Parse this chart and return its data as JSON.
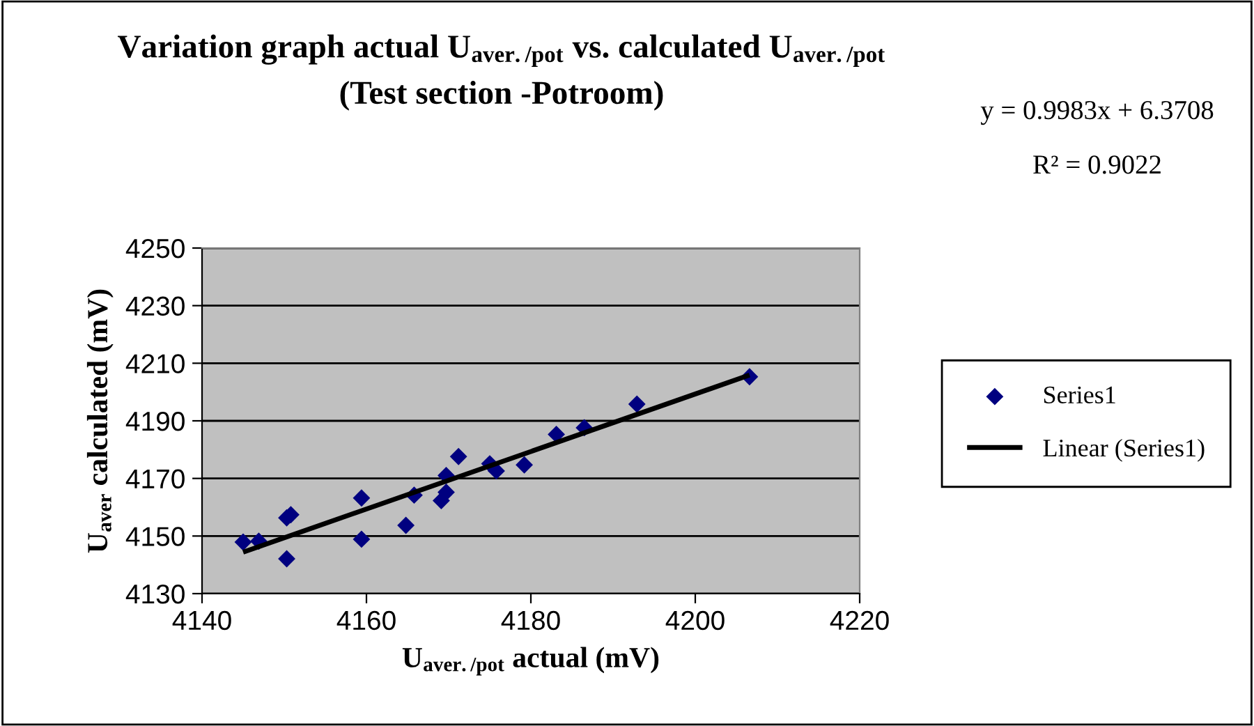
{
  "chart_data": {
    "type": "scatter",
    "title": "Variation graph actual U$_{aver./pot}$ vs. calculated U$_{aver./pot}$\n(Test section -Potroom)",
    "xlabel": "U$_{aver./pot}$ actual (mV)",
    "ylabel": "U$_{aver}$ calculated (mV)",
    "xlim": [
      4140,
      4220
    ],
    "xticks": [
      4140,
      4160,
      4180,
      4200,
      4220
    ],
    "ylim": [
      4130,
      4250
    ],
    "yticks": [
      4130,
      4150,
      4170,
      4190,
      4210,
      4230,
      4250
    ],
    "grid": "y",
    "legend": "right",
    "marker": "diamond",
    "annotations": [
      "y = 0.9983x + 6.3708",
      "R² = 0.9022"
    ],
    "series": [
      {
        "name": "Series1",
        "color": "#000080",
        "x": [
          4145.0,
          4146.9,
          4150.3,
          4150.8,
          4150.3,
          4159.4,
          4159.4,
          4164.8,
          4165.8,
          4169.1,
          4169.7,
          4169.7,
          4171.2,
          4175.0,
          4175.8,
          4179.2,
          4183.1,
          4186.5,
          4192.9,
          4206.6
        ],
        "values": [
          4147.9,
          4148.2,
          4156.3,
          4157.4,
          4142.1,
          4163.2,
          4148.9,
          4153.7,
          4164.2,
          4162.3,
          4165.2,
          4171.0,
          4177.6,
          4175.1,
          4172.6,
          4174.7,
          4185.3,
          4187.6,
          4195.8,
          4205.3
        ]
      },
      {
        "name": "Linear (Series1)",
        "color": "#000000",
        "type": "line",
        "marker": "none",
        "line_style": "solid",
        "x": [
          4145.0,
          4206.6
        ],
        "values": [
          4144.4,
          4205.9
        ]
      }
    ]
  }
}
